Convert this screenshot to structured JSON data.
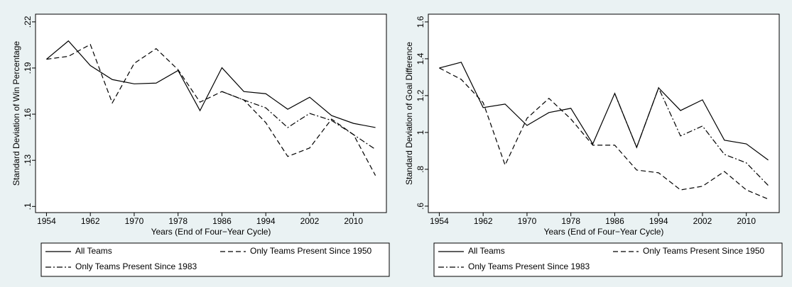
{
  "chart_data": [
    {
      "type": "line",
      "x_label": "Years (End of Four−Year Cycle)",
      "y_label": "Standard Deviation of Win Percentage",
      "x": [
        1954,
        1958,
        1962,
        1966,
        1970,
        1974,
        1978,
        1982,
        1986,
        1990,
        1994,
        1998,
        2002,
        2006,
        2010,
        2014
      ],
      "xlim": [
        1952,
        2016
      ],
      "xticks": [
        1954,
        1962,
        1970,
        1978,
        1986,
        1994,
        2002,
        2010
      ],
      "ylim": [
        0.096,
        0.225
      ],
      "yticks": [
        {
          "value": 0.1,
          "label": ".1"
        },
        {
          "value": 0.13,
          "label": ".13"
        },
        {
          "value": 0.16,
          "label": ".16"
        },
        {
          "value": 0.19,
          "label": ".19"
        },
        {
          "value": 0.22,
          "label": ".22"
        }
      ],
      "series": [
        {
          "name": "All Teams",
          "color": "#000000",
          "style": "solid",
          "values": [
            0.1957,
            0.2076,
            0.1916,
            0.1825,
            0.1797,
            0.1802,
            0.1884,
            0.1623,
            0.1902,
            0.1747,
            0.1733,
            0.1632,
            0.171,
            0.1591,
            0.154,
            0.1513
          ]
        },
        {
          "name": "Only Teams Present Since 1950",
          "color": "#000000",
          "style": "dashed",
          "values": [
            0.1957,
            0.1976,
            0.2053,
            0.1673,
            0.193,
            0.2026,
            0.1889,
            0.1678,
            0.1747,
            0.1692,
            0.1545,
            0.1325,
            0.138,
            0.1568,
            0.1467,
            0.1201
          ]
        },
        {
          "name": "Only Teams Present Since 1983",
          "color": "#000000",
          "style": "dashdot",
          "values": [
            null,
            null,
            null,
            null,
            null,
            null,
            null,
            null,
            0.1747,
            0.1692,
            0.1641,
            0.1513,
            0.1605,
            0.1559,
            0.1467,
            0.1371
          ]
        }
      ]
    },
    {
      "type": "line",
      "x_label": "Years (End of Four−Year Cycle)",
      "y_label": "Standard Deviation of Goal Difference",
      "x": [
        1954,
        1958,
        1962,
        1966,
        1970,
        1974,
        1978,
        1982,
        1986,
        1990,
        1994,
        1998,
        2002,
        2006,
        2010,
        2014
      ],
      "xlim": [
        1952,
        2016
      ],
      "xticks": [
        1954,
        1962,
        1970,
        1978,
        1986,
        1994,
        2002,
        2010
      ],
      "ylim": [
        0.565,
        1.642
      ],
      "yticks": [
        {
          "value": 0.6,
          "label": ".6"
        },
        {
          "value": 0.8,
          "label": ".8"
        },
        1,
        1.2,
        1.4,
        1.6
      ],
      "series": [
        {
          "name": "All Teams",
          "color": "#000000",
          "style": "solid",
          "values": [
            1.35,
            1.381,
            1.135,
            1.154,
            1.038,
            1.108,
            1.131,
            0.938,
            1.212,
            0.919,
            1.242,
            1.119,
            1.177,
            0.958,
            0.938,
            0.85
          ]
        },
        {
          "name": "Only Teams Present Since 1950",
          "color": "#000000",
          "style": "dashed",
          "values": [
            1.35,
            1.288,
            1.162,
            0.823,
            1.077,
            1.185,
            1.073,
            0.931,
            0.931,
            0.796,
            0.781,
            0.688,
            0.708,
            0.788,
            0.688,
            0.638
          ]
        },
        {
          "name": "Only Teams Present Since 1983",
          "color": "#000000",
          "style": "dashdot",
          "values": [
            null,
            null,
            null,
            null,
            null,
            null,
            null,
            null,
            1.212,
            0.919,
            1.242,
            0.981,
            1.035,
            0.881,
            0.835,
            0.712
          ]
        }
      ]
    }
  ]
}
